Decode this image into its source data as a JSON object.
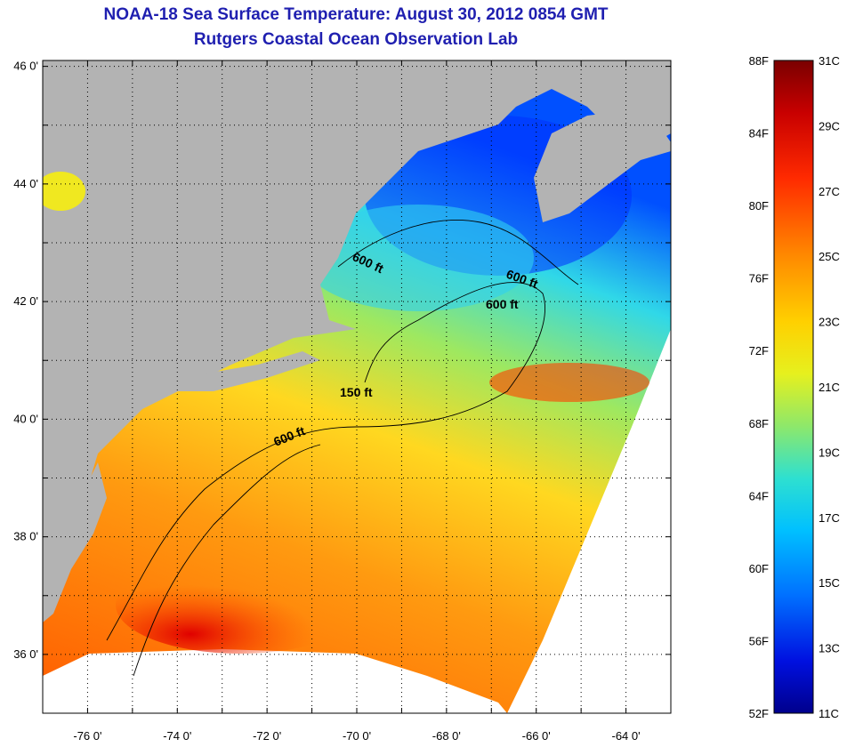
{
  "header": {
    "title": "NOAA-18 Sea Surface Temperature:  August 30, 2012 0854 GMT",
    "subtitle": "Rutgers Coastal Ocean Observation Lab"
  },
  "map": {
    "lat_labels": [
      "46 0'",
      "44 0'",
      "42 0'",
      "40 0'",
      "38 0'",
      "36 0'"
    ],
    "lon_labels": [
      "-76 0'",
      "-74 0'",
      "-72 0'",
      "-70 0'",
      "-68 0'",
      "-66 0'",
      "-64 0'"
    ],
    "lat_range": [
      35,
      46.1
    ],
    "lon_range": [
      -77,
      -63
    ],
    "contour_labels": [
      "600 ft",
      "600 ft",
      "600 ft",
      "150 ft",
      "600 ft"
    ],
    "land_color": "#b3b3b3"
  },
  "colorbar": {
    "fahrenheit": [
      "88F",
      "84F",
      "80F",
      "76F",
      "72F",
      "68F",
      "64F",
      "60F",
      "56F",
      "52F"
    ],
    "celsius": [
      "31C",
      "29C",
      "27C",
      "25C",
      "23C",
      "21C",
      "19C",
      "17C",
      "15C",
      "13C",
      "11C"
    ],
    "range_c": [
      11,
      31
    ]
  }
}
